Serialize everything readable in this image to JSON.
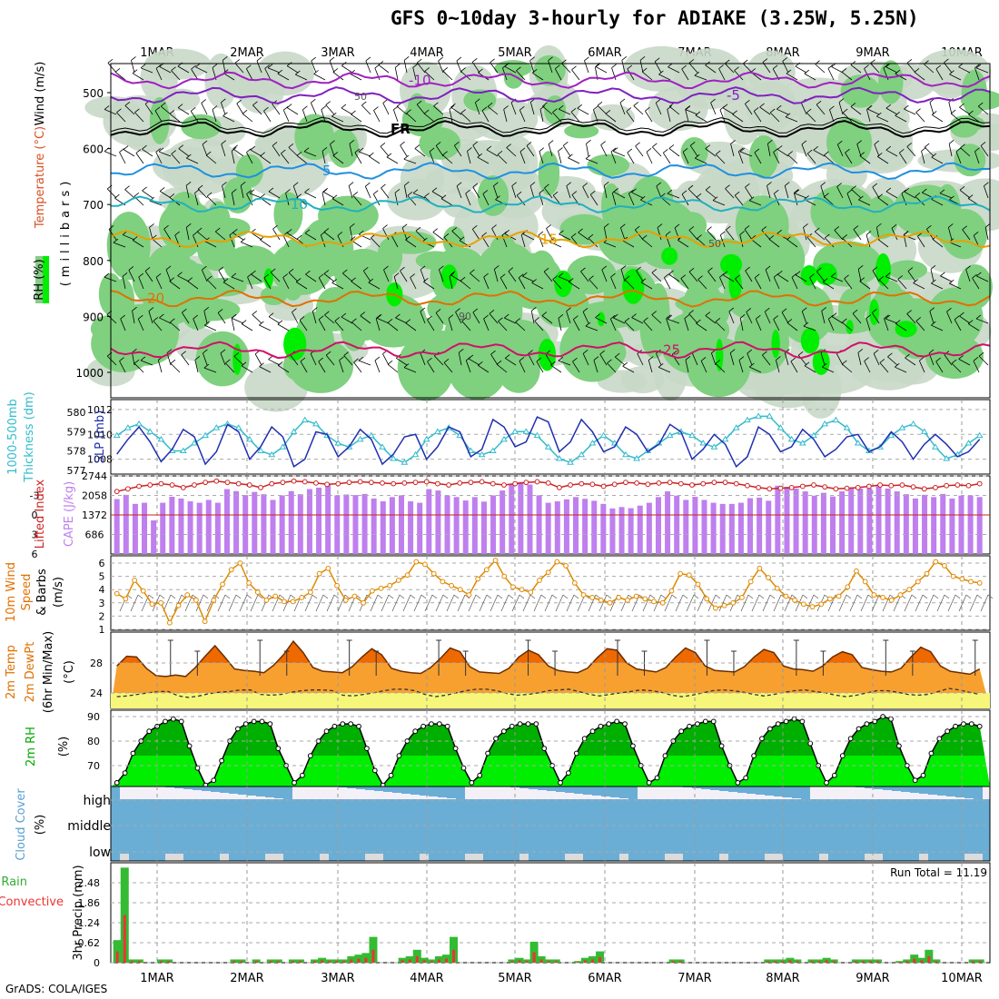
{
  "title": "GFS 0~10day 3-hourly for ADIAKE (3.25W, 5.25N)",
  "credit": "GrADS: COLA/IGES",
  "colors": {
    "rh_light": "#c8d8c8",
    "rh_mid": "#7fd07f",
    "rh_high": "#00ee00",
    "slp": "#1f2fb0",
    "thickness": "#33bbcc",
    "cape": "#bf7fef",
    "lifted": "#cc2222",
    "wind10": "#e08a00",
    "temp": "#f07800",
    "dewpt_band": "#f6f67a",
    "rh2m_light": "#00ee00",
    "rh2m_dark": "#00b000",
    "cloud": "#6aaed6",
    "precip_total": "#33bb33",
    "precip_conv": "#ee3333"
  },
  "chart_data": {
    "type": "meteogram",
    "dates": [
      "1MAR",
      "2MAR",
      "3MAR",
      "4MAR",
      "5MAR",
      "6MAR",
      "7MAR",
      "8MAR",
      "9MAR",
      "10MAR"
    ],
    "panels": [
      {
        "id": "upper",
        "ylabels": [
          "RH (%)",
          "Temperature (°C)",
          "Wind (m/s)",
          "(millibars)"
        ],
        "yticks": [
          500,
          600,
          700,
          800,
          900,
          1000
        ],
        "isotherms": [
          {
            "label": "-10",
            "level": 478
          },
          {
            "label": "-5",
            "level": 505
          },
          {
            "label": "FR",
            "level": 565
          },
          {
            "label": "5",
            "level": 640
          },
          {
            "label": "10",
            "level": 700
          },
          {
            "label": "15",
            "level": 762
          },
          {
            "label": "20",
            "level": 868
          },
          {
            "label": "25",
            "level": 960
          }
        ],
        "contour_labels": [
          "50",
          "50",
          "90"
        ]
      },
      {
        "id": "slp",
        "ylabels": [
          "SLP (mb)",
          "Thickness (dm)",
          "1000-500mb"
        ],
        "left_ticks": [
          "577",
          "578",
          "579",
          "580"
        ],
        "right_ticks": [
          "1008",
          "1010",
          "1012"
        ],
        "slp_range": [
          1006.8,
          1012.8
        ],
        "slp": [
          1008.4,
          1009.6,
          1010.6,
          1009.4,
          1007.8,
          1008.8,
          1010.4,
          1009.8,
          1007.6,
          1008.6,
          1010.8,
          1010.2,
          1008.0,
          1009.0,
          1010.6,
          1009.8,
          1007.4,
          1008.0,
          1010.2,
          1010.0,
          1008.2,
          1009.0,
          1010.4,
          1009.6,
          1007.6,
          1008.4,
          1009.8,
          1010.0,
          1008.0,
          1009.0,
          1010.6,
          1010.2,
          1008.2,
          1008.8,
          1011.2,
          1010.6,
          1009.0,
          1009.4,
          1011.4,
          1011.0,
          1008.6,
          1009.4,
          1011.2,
          1010.2,
          1008.6,
          1009.0,
          1010.6,
          1010.0,
          1008.6,
          1009.2,
          1010.8,
          1010.2,
          1008.0,
          1008.8,
          1010.0,
          1009.2,
          1007.4,
          1008.2,
          1010.6,
          1010.0,
          1008.6,
          1009.0,
          1010.4,
          1009.6,
          1008.2,
          1008.8,
          1009.8,
          1010.0,
          1008.6,
          1009.0,
          1010.2,
          1009.4,
          1008.0,
          1009.2,
          1010.0,
          1009.2,
          1008.2,
          1008.6,
          1009.6
        ],
        "thk": [
          578.8,
          579.2,
          579.4,
          579.0,
          578.6,
          578.0,
          578.0,
          578.4,
          578.8,
          579.2,
          579.4,
          579.2,
          578.6,
          578.0,
          577.8,
          578.2,
          579.0,
          579.6,
          579.4,
          578.8,
          578.4,
          578.2,
          578.6,
          578.8,
          578.2,
          577.6,
          577.4,
          577.8,
          578.6,
          579.0,
          579.2,
          578.8,
          578.0,
          577.8,
          578.0,
          578.6,
          579.0,
          579.0,
          578.8,
          578.2,
          577.6,
          577.4,
          577.8,
          578.4,
          578.8,
          578.4,
          577.8,
          577.6,
          578.0,
          578.4,
          578.8,
          579.0,
          578.8,
          578.4,
          578.2,
          578.6,
          579.2,
          579.6,
          579.8,
          579.8,
          579.2,
          578.6,
          578.4,
          578.8,
          579.4,
          579.6,
          579.2,
          578.4,
          578.0,
          578.2,
          578.8,
          579.2,
          579.4,
          579.0,
          578.2,
          577.6,
          577.8,
          578.4,
          578.8
        ]
      },
      {
        "id": "cape",
        "ylabels": [
          "Lifted Index",
          "CAPE (J/kg)"
        ],
        "left_ticks": [
          "-3",
          "0",
          "3",
          "6"
        ],
        "right_ticks": [
          "686",
          "1372",
          "2058",
          "2744"
        ],
        "cape_max": 2744,
        "cape": [
          1930,
          2080,
          1760,
          1800,
          1180,
          1800,
          2010,
          1950,
          1850,
          1800,
          1900,
          1800,
          2280,
          2210,
          2070,
          2180,
          2100,
          1900,
          2060,
          2210,
          2100,
          2280,
          2330,
          2470,
          2060,
          2090,
          2070,
          2110,
          1950,
          1850,
          2000,
          2060,
          1850,
          1800,
          2280,
          2230,
          2060,
          2000,
          1880,
          2000,
          1840,
          2060,
          2230,
          2460,
          2530,
          2440,
          2060,
          1800,
          1850,
          1920,
          2000,
          1940,
          1870,
          1760,
          1600,
          1650,
          1610,
          1700,
          1800,
          2000,
          2200,
          2050,
          1900,
          2010,
          1900,
          1800,
          1760,
          1760,
          1800,
          1960,
          1980,
          1870,
          2400,
          2360,
          2300,
          2200,
          2050,
          2150,
          2020,
          2200,
          2300,
          2300,
          2310,
          2400,
          2300,
          2200,
          2100,
          1950,
          2080,
          2000,
          2110,
          1950,
          2050,
          2060,
          2000
        ],
        "lifted": [
          -3.6,
          -4.0,
          -4.4,
          -4.6,
          -4.8,
          -4.6,
          -4.2,
          -4.6,
          -5.0,
          -5.2,
          -5.0,
          -4.8,
          -4.6,
          -4.2,
          -4.8,
          -5.0,
          -5.2,
          -5.1,
          -4.9,
          -4.7,
          -4.8,
          -5.0,
          -5.1,
          -5.0,
          -4.9,
          -4.8,
          -4.9,
          -5.0,
          -5.1,
          -4.8,
          -4.6,
          -4.9,
          -5.0,
          -5.1,
          -4.8,
          -4.6,
          -4.8,
          -5.0,
          -5.1,
          -4.9,
          -4.2,
          -4.6,
          -4.8,
          -4.7,
          -4.4,
          -4.7,
          -5.0,
          -4.9,
          -4.7,
          -4.9,
          -5.0,
          -4.8,
          -4.6,
          -4.8,
          -5.0,
          -5.0,
          -4.8,
          -4.5,
          -4.2,
          -4.0,
          -4.1,
          -4.2,
          -4.4,
          -4.6,
          -4.3,
          -4.0,
          -4.1,
          -4.2,
          -4.4,
          -4.6,
          -4.5,
          -4.6,
          -4.3,
          -4.0,
          -4.2,
          -4.5,
          -4.6,
          -4.5,
          -4.8
        ]
      },
      {
        "id": "wind10",
        "ylabels": [
          "10m Wind",
          "Speed",
          "& Barbs",
          "(m/s)"
        ],
        "left_ticks": [
          "1",
          "2",
          "3",
          "4",
          "5",
          "6"
        ],
        "wind": [
          3.7,
          3.3,
          4.7,
          3.9,
          2.9,
          3.0,
          1.5,
          2.8,
          3.6,
          3.2,
          1.6,
          3.2,
          4.4,
          5.5,
          6.0,
          4.5,
          3.8,
          3.2,
          3.5,
          3.1,
          3.1,
          3.4,
          3.8,
          5.2,
          5.6,
          4.3,
          3.2,
          3.5,
          3.0,
          3.9,
          4.1,
          4.3,
          4.7,
          5.1,
          6.1,
          5.9,
          5.2,
          4.6,
          4.3,
          4.0,
          3.6,
          4.8,
          5.5,
          6.2,
          5.0,
          4.2,
          4.0,
          3.8,
          4.7,
          5.3,
          6.1,
          5.8,
          4.5,
          3.6,
          3.4,
          3.2,
          3.0,
          3.4,
          3.2,
          3.5,
          3.3,
          3.1,
          3.0,
          3.9,
          5.2,
          5.1,
          4.4,
          3.3,
          2.6,
          2.8,
          3.0,
          3.4,
          4.6,
          5.6,
          4.9,
          4.1,
          3.5,
          3.2,
          2.9,
          2.7,
          2.9,
          3.3,
          3.5,
          4.2,
          5.4,
          4.6,
          3.6,
          3.4,
          3.2,
          3.6,
          4.0,
          4.6,
          5.2,
          6.1,
          5.8,
          5.0,
          4.8,
          4.6,
          4.5
        ]
      },
      {
        "id": "temp2m",
        "ylabels": [
          "2m Temp",
          "2m DewPt",
          "(6hr Min/Max)",
          "(°C)"
        ],
        "left_ticks": [
          "24",
          "28"
        ],
        "temp": [
          27.6,
          28.9,
          28.8,
          27.3,
          26.3,
          26.2,
          26.4,
          26.2,
          27.4,
          28.9,
          30.3,
          28.8,
          27.2,
          27.0,
          26.9,
          26.7,
          27.7,
          29.1,
          30.9,
          29.4,
          27.4,
          26.9,
          26.8,
          26.7,
          27.5,
          28.8,
          29.9,
          29.1,
          27.3,
          26.9,
          26.7,
          26.6,
          27.4,
          28.6,
          30.0,
          29.5,
          27.5,
          26.8,
          26.7,
          26.6,
          27.3,
          28.8,
          29.7,
          29.1,
          27.6,
          27.0,
          26.8,
          26.7,
          27.3,
          28.7,
          29.9,
          29.7,
          28.0,
          27.2,
          27.0,
          26.8,
          27.4,
          28.8,
          30.0,
          29.4,
          27.6,
          27.0,
          26.9,
          26.8,
          27.5,
          28.8,
          29.8,
          29.4,
          27.6,
          27.2,
          27.1,
          26.9,
          27.6,
          28.8,
          29.5,
          29.1,
          27.4,
          27.1,
          26.9,
          26.8,
          27.3,
          28.8,
          30.1,
          29.5,
          27.6,
          26.9,
          26.7,
          26.5,
          27.2
        ],
        "dewpt": [
          23.5,
          23.6,
          23.8,
          24.0,
          24.2,
          24.2,
          23.6,
          23.4,
          23.6,
          23.9,
          24.1,
          24.2,
          24.4,
          24.4,
          23.8,
          23.7,
          23.8,
          24.1,
          24.3,
          24.4,
          24.4,
          24.3,
          23.7,
          23.6,
          23.8,
          24.0,
          24.3,
          24.5,
          24.5,
          24.3,
          23.8,
          23.5,
          23.7,
          24.0,
          24.3,
          24.5,
          24.5,
          24.3,
          23.9,
          23.7,
          23.8,
          24.0,
          24.3,
          24.4,
          24.5,
          24.2,
          23.8,
          23.6,
          23.8,
          24.0,
          24.2,
          24.4,
          24.3,
          24.1,
          23.7,
          23.5,
          23.7,
          24.0,
          24.3,
          24.4,
          24.3,
          24.1,
          23.8,
          23.6,
          23.8,
          24.1,
          24.3,
          24.4,
          24.2,
          24.0,
          23.7,
          23.5,
          23.7,
          24.0,
          24.3,
          24.3,
          24.1,
          23.8,
          23.7,
          23.8,
          24.2,
          24.6,
          24.4,
          24.1,
          23.8
        ]
      },
      {
        "id": "rh2m",
        "ylabels": [
          "2m RH",
          "(%)"
        ],
        "left_ticks": [
          "70",
          "80",
          "90"
        ],
        "rh": [
          63,
          67,
          75,
          80,
          84,
          86,
          88,
          89,
          88,
          78,
          69,
          62,
          64,
          72,
          80,
          85,
          87,
          88,
          88,
          87,
          77,
          70,
          63,
          66,
          74,
          80,
          84,
          86,
          87,
          87,
          86,
          77,
          68,
          62,
          66,
          74,
          80,
          84,
          86,
          87,
          87,
          86,
          77,
          69,
          63,
          66,
          75,
          81,
          84,
          86,
          87,
          87,
          87,
          77,
          70,
          63,
          67,
          75,
          81,
          84,
          86,
          87,
          88,
          87,
          78,
          70,
          63,
          65,
          74,
          80,
          84,
          86,
          87,
          88,
          88,
          78,
          70,
          63,
          65,
          74,
          81,
          85,
          87,
          88,
          89,
          88,
          79,
          70,
          63,
          66,
          74,
          81,
          85,
          87,
          88,
          90,
          89,
          78,
          70,
          64,
          66,
          75,
          81,
          84,
          86,
          87,
          87,
          86
        ]
      },
      {
        "id": "cloud",
        "ylabels": [
          "Cloud Cover",
          "(%)"
        ],
        "left_ticks": [
          "high",
          "middle",
          "low"
        ]
      },
      {
        "id": "precip",
        "ylabels": [
          "Total / Rain",
          "Convective",
          "3hr Precip (mm)"
        ],
        "left_ticks": [
          "0",
          "0.62",
          "1.24",
          "1.86",
          "2.48"
        ],
        "annotation": "Run Total = 11.19",
        "precip_max": 3.1,
        "total": [
          0.7,
          2.95,
          0.1,
          0.1,
          0,
          0,
          0.1,
          0.1,
          0,
          0,
          0,
          0,
          0,
          0,
          0,
          0,
          0.1,
          0.1,
          0,
          0.1,
          0,
          0.1,
          0.1,
          0,
          0.1,
          0.1,
          0,
          0.1,
          0.15,
          0.1,
          0.1,
          0.1,
          0.2,
          0.25,
          0.3,
          0.8,
          0,
          0,
          0,
          0.15,
          0.2,
          0.4,
          0.15,
          0.1,
          0.2,
          0.25,
          0.8,
          0,
          0,
          0,
          0,
          0,
          0,
          0,
          0.1,
          0.15,
          0.1,
          0.65,
          0.2,
          0.1,
          0.1,
          0,
          0,
          0.05,
          0.15,
          0.2,
          0.35,
          0,
          0,
          0,
          0,
          0,
          0,
          0,
          0,
          0,
          0.1,
          0.1,
          0,
          0,
          0,
          0,
          0,
          0,
          0,
          0,
          0,
          0,
          0,
          0.1,
          0.1,
          0.1,
          0.15,
          0.1,
          0,
          0.1,
          0.1,
          0.15,
          0.1,
          0,
          0,
          0.1,
          0.1,
          0.1,
          0.1,
          0,
          0,
          0.05,
          0.1,
          0.25,
          0.15,
          0.4,
          0.1,
          0,
          0,
          0,
          0,
          0.1,
          0.1
        ]
      }
    ]
  }
}
